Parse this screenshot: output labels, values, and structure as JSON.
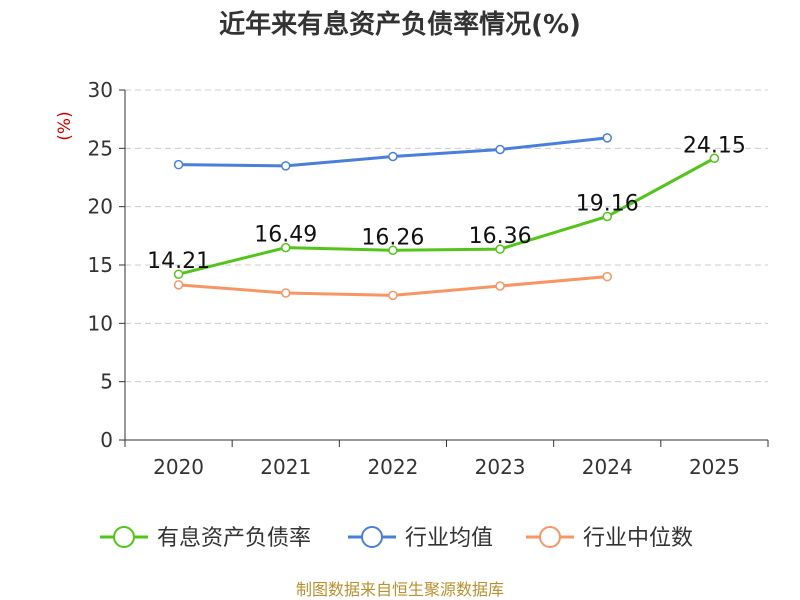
{
  "title": "近年来有息资产负债率情况(%)",
  "source": "制图数据来自恒生聚源数据库",
  "colors": {
    "company": "#52c41a",
    "industry_avg": "#4a7fd9",
    "industry_median": "#f79565",
    "grid": "#cccccc",
    "axis": "#333333"
  },
  "chart_data": {
    "type": "line",
    "title": "近年来有息资产负债率情况(%)",
    "ylabel": "(%)",
    "xlabel": "",
    "categories": [
      "2020",
      "2021",
      "2022",
      "2023",
      "2024",
      "2025"
    ],
    "ylim": [
      0,
      30
    ],
    "yticks": [
      0,
      5,
      10,
      15,
      20,
      25,
      30
    ],
    "grid": true,
    "legend_position": "bottom",
    "series": [
      {
        "name": "有息资产负债率",
        "color": "#52c41a",
        "values": [
          14.21,
          16.49,
          16.26,
          16.36,
          19.16,
          24.15
        ],
        "labels": true
      },
      {
        "name": "行业均值",
        "color": "#4a7fd9",
        "values": [
          23.6,
          23.5,
          24.3,
          24.9,
          25.9,
          null
        ],
        "labels": false
      },
      {
        "name": "行业中位数",
        "color": "#f79565",
        "values": [
          13.3,
          12.6,
          12.4,
          13.2,
          14.0,
          null
        ],
        "labels": false
      }
    ]
  }
}
